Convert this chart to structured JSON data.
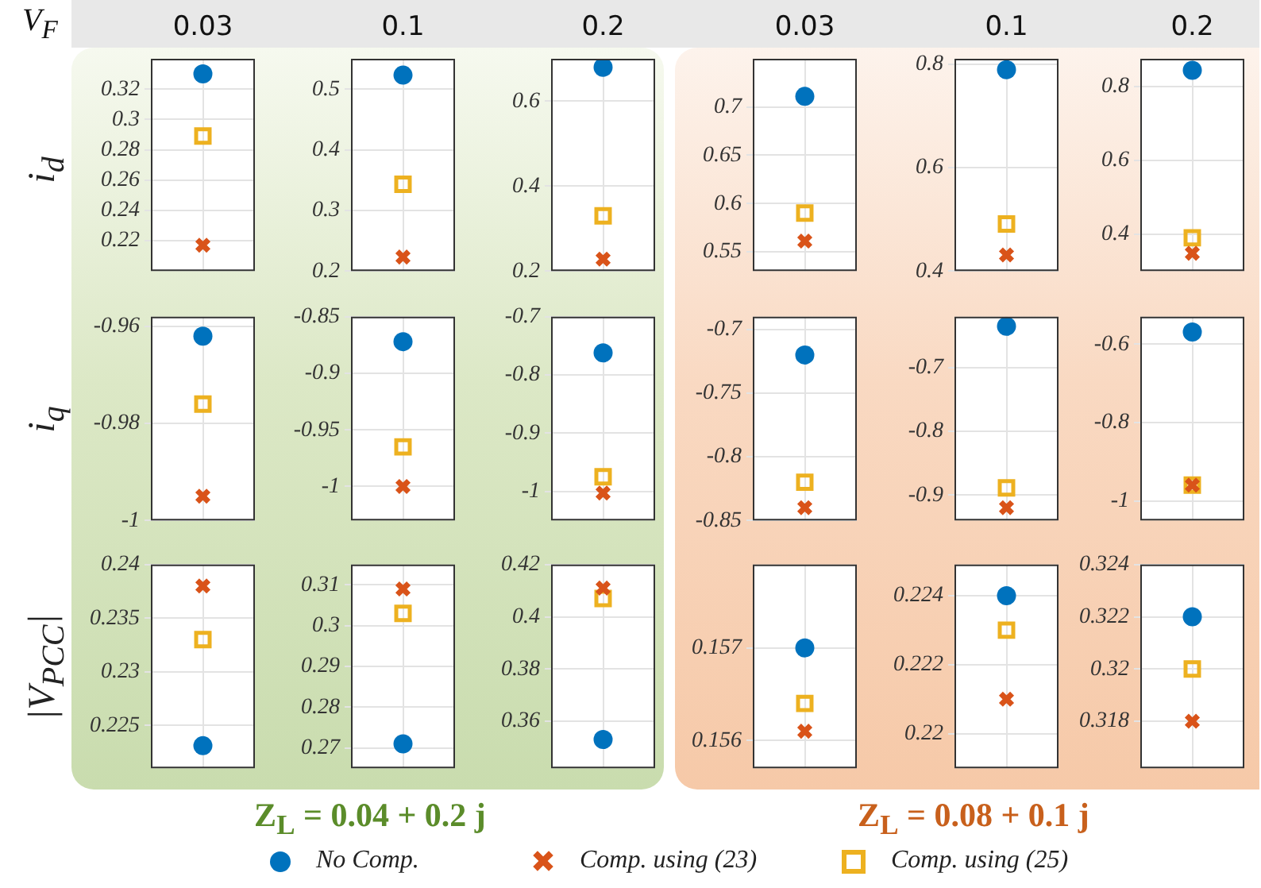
{
  "chart_data": [
    {
      "type": "scatter",
      "ylabel": "i$_{d}$",
      "annotations": [
        "V$_{F}$"
      ],
      "legend": "bottom",
      "categories": [
        "0.03"
      ],
      "ylim": [
        0.2,
        0.34
      ],
      "yticks": [
        0.22,
        0.24,
        0.26,
        0.28,
        0.3,
        0.32
      ],
      "grid": true,
      "series": [
        {
          "name": "No Comp.",
          "color": "#0072bd",
          "marker": "circle",
          "values": [
            0.33
          ]
        },
        {
          "name": "Comp. using (23)",
          "color": "#d95319",
          "marker": "cross",
          "values": [
            0.217
          ]
        },
        {
          "name": "Comp. using (25)",
          "color": "#edb120",
          "marker": "square",
          "values": [
            0.289
          ]
        }
      ]
    },
    {
      "type": "scatter",
      "categories": [
        "0.1"
      ],
      "ylim": [
        0.2,
        0.55
      ],
      "yticks": [
        0.2,
        0.3,
        0.4,
        0.5
      ],
      "grid": true,
      "series": [
        {
          "color": "#0072bd",
          "marker": "circle",
          "values": [
            0.523
          ]
        },
        {
          "color": "#d95319",
          "marker": "cross",
          "values": [
            0.223
          ]
        },
        {
          "color": "#edb120",
          "marker": "square",
          "values": [
            0.343
          ]
        }
      ]
    },
    {
      "type": "scatter",
      "categories": [
        "0.2"
      ],
      "ylim": [
        0.2,
        0.7
      ],
      "yticks": [
        0.2,
        0.4,
        0.6
      ],
      "grid": true,
      "series": [
        {
          "color": "#0072bd",
          "marker": "circle",
          "values": [
            0.68
          ]
        },
        {
          "color": "#d95319",
          "marker": "cross",
          "values": [
            0.228
          ]
        },
        {
          "color": "#edb120",
          "marker": "square",
          "values": [
            0.33
          ]
        }
      ]
    },
    {
      "type": "scatter",
      "categories": [
        "0.03"
      ],
      "ylim": [
        0.53,
        0.75
      ],
      "yticks": [
        0.55,
        0.6,
        0.65,
        0.7
      ],
      "grid": true,
      "series": [
        {
          "color": "#0072bd",
          "marker": "circle",
          "values": [
            0.711
          ]
        },
        {
          "color": "#d95319",
          "marker": "cross",
          "values": [
            0.561
          ]
        },
        {
          "color": "#edb120",
          "marker": "square",
          "values": [
            0.59
          ]
        }
      ]
    },
    {
      "type": "scatter",
      "categories": [
        "0.1"
      ],
      "ylim": [
        0.4,
        0.81
      ],
      "yticks": [
        0.4,
        0.6,
        0.8
      ],
      "grid": true,
      "series": [
        {
          "color": "#0072bd",
          "marker": "circle",
          "values": [
            0.789
          ]
        },
        {
          "color": "#d95319",
          "marker": "cross",
          "values": [
            0.431
          ]
        },
        {
          "color": "#edb120",
          "marker": "square",
          "values": [
            0.491
          ]
        }
      ]
    },
    {
      "type": "scatter",
      "categories": [
        "0.2"
      ],
      "ylim": [
        0.3,
        0.875
      ],
      "yticks": [
        0.4,
        0.6,
        0.8
      ],
      "grid": true,
      "series": [
        {
          "color": "#0072bd",
          "marker": "circle",
          "values": [
            0.844
          ]
        },
        {
          "color": "#d95319",
          "marker": "cross",
          "values": [
            0.348
          ]
        },
        {
          "color": "#edb120",
          "marker": "square",
          "values": [
            0.39
          ]
        }
      ]
    },
    {
      "type": "scatter",
      "ylabel": "i$_{q}$",
      "categories": [
        "0.03"
      ],
      "ylim": [
        -1,
        -0.958
      ],
      "yticks": [
        -1,
        -0.98,
        -0.96
      ],
      "grid": true,
      "tick_labels": "y",
      "series": [
        {
          "color": "#0072bd",
          "marker": "circle",
          "values": [
            -0.962
          ]
        },
        {
          "color": "#d95319",
          "marker": "cross",
          "values": [
            -0.995
          ]
        },
        {
          "color": "#edb120",
          "marker": "square",
          "values": [
            -0.976
          ]
        }
      ]
    },
    {
      "type": "scatter",
      "categories": [
        "0.1"
      ],
      "ylim": [
        -1.03,
        -0.85
      ],
      "yticks": [
        -1,
        -0.95,
        -0.9,
        -0.85
      ],
      "grid": true,
      "tick_labels": "y",
      "series": [
        {
          "color": "#0072bd",
          "marker": "circle",
          "values": [
            -0.872
          ]
        },
        {
          "color": "#d95319",
          "marker": "cross",
          "values": [
            -1.0
          ]
        },
        {
          "color": "#edb120",
          "marker": "square",
          "values": [
            -0.965
          ]
        }
      ]
    },
    {
      "type": "scatter",
      "categories": [
        "0.2"
      ],
      "ylim": [
        -1.05,
        -0.7
      ],
      "yticks": [
        -1,
        -0.9,
        -0.8,
        -0.7
      ],
      "grid": true,
      "tick_labels": "y",
      "series": [
        {
          "color": "#0072bd",
          "marker": "circle",
          "values": [
            -0.762
          ]
        },
        {
          "color": "#d95319",
          "marker": "cross",
          "values": [
            -1.003
          ]
        },
        {
          "color": "#edb120",
          "marker": "square",
          "values": [
            -0.975
          ]
        }
      ]
    },
    {
      "type": "scatter",
      "categories": [
        "0.03"
      ],
      "ylim": [
        -0.85,
        -0.69
      ],
      "yticks": [
        -0.85,
        -0.8,
        -0.75,
        -0.7
      ],
      "grid": true,
      "tick_labels": "y",
      "series": [
        {
          "color": "#0072bd",
          "marker": "circle",
          "values": [
            -0.72
          ]
        },
        {
          "color": "#d95319",
          "marker": "cross",
          "values": [
            -0.84
          ]
        },
        {
          "color": "#edb120",
          "marker": "square",
          "values": [
            -0.82
          ]
        }
      ]
    },
    {
      "type": "scatter",
      "categories": [
        "0.1"
      ],
      "ylim": [
        -0.94,
        -0.62
      ],
      "yticks": [
        -0.9,
        -0.8,
        -0.7
      ],
      "grid": true,
      "tick_labels": "y",
      "series": [
        {
          "color": "#0072bd",
          "marker": "circle",
          "values": [
            -0.635
          ]
        },
        {
          "color": "#d95319",
          "marker": "cross",
          "values": [
            -0.92
          ]
        },
        {
          "color": "#edb120",
          "marker": "square",
          "values": [
            -0.889
          ]
        }
      ]
    },
    {
      "type": "scatter",
      "categories": [
        "0.2"
      ],
      "ylim": [
        -1.05,
        -0.53
      ],
      "yticks": [
        -1,
        -0.8,
        -0.6
      ],
      "grid": true,
      "tick_labels": "y",
      "series": [
        {
          "color": "#0072bd",
          "marker": "circle",
          "values": [
            -0.569
          ]
        },
        {
          "color": "#d95319",
          "marker": "cross",
          "values": [
            -0.96
          ]
        },
        {
          "color": "#edb120",
          "marker": "square",
          "values": [
            -0.96
          ]
        }
      ]
    },
    {
      "type": "scatter",
      "ylabel": "|V$_{PCC}$|",
      "categories": [
        "0.03"
      ],
      "ylim": [
        0.221,
        0.24
      ],
      "yticks": [
        0.225,
        0.23,
        0.235,
        0.24
      ],
      "grid": true,
      "tick_labels": "y",
      "series": [
        {
          "color": "#0072bd",
          "marker": "circle",
          "values": [
            0.2231
          ]
        },
        {
          "color": "#d95319",
          "marker": "cross",
          "values": [
            0.238
          ]
        },
        {
          "color": "#edb120",
          "marker": "square",
          "values": [
            0.233
          ]
        }
      ]
    },
    {
      "type": "scatter",
      "xlabel": "Z$_{L}$ = 0.04 + 0.2 j",
      "categories": [
        "0.1"
      ],
      "ylim": [
        0.265,
        0.315
      ],
      "yticks": [
        0.27,
        0.28,
        0.29,
        0.3,
        0.31
      ],
      "grid": true,
      "tick_labels": "y",
      "series": [
        {
          "color": "#0072bd",
          "marker": "circle",
          "values": [
            0.271
          ]
        },
        {
          "color": "#d95319",
          "marker": "cross",
          "values": [
            0.309
          ]
        },
        {
          "color": "#edb120",
          "marker": "square",
          "values": [
            0.303
          ]
        }
      ]
    },
    {
      "type": "scatter",
      "categories": [
        "0.2"
      ],
      "ylim": [
        0.342,
        0.42
      ],
      "yticks": [
        0.36,
        0.38,
        0.4,
        0.42
      ],
      "grid": true,
      "tick_labels": "y",
      "series": [
        {
          "color": "#0072bd",
          "marker": "circle",
          "values": [
            0.353
          ]
        },
        {
          "color": "#d95319",
          "marker": "cross",
          "values": [
            0.411
          ]
        },
        {
          "color": "#edb120",
          "marker": "square",
          "values": [
            0.407
          ]
        }
      ]
    },
    {
      "type": "scatter",
      "categories": [
        "0.03"
      ],
      "ylim": [
        0.1557,
        0.1579
      ],
      "yticks": [
        0.156,
        0.157
      ],
      "grid": true,
      "tick_labels": "y",
      "series": [
        {
          "color": "#0072bd",
          "marker": "circle",
          "values": [
            0.157
          ]
        },
        {
          "color": "#d95319",
          "marker": "cross",
          "values": [
            0.1561
          ]
        },
        {
          "color": "#edb120",
          "marker": "square",
          "values": [
            0.1564
          ]
        }
      ]
    },
    {
      "type": "scatter",
      "xlabel": "Z$_{L}$ = 0.08 + 0.1 j",
      "categories": [
        "0.1"
      ],
      "ylim": [
        0.219,
        0.2249
      ],
      "yticks": [
        0.22,
        0.222,
        0.224
      ],
      "grid": true,
      "tick_labels": "y",
      "series": [
        {
          "color": "#0072bd",
          "marker": "circle",
          "values": [
            0.224
          ]
        },
        {
          "color": "#d95319",
          "marker": "cross",
          "values": [
            0.221
          ]
        },
        {
          "color": "#edb120",
          "marker": "square",
          "values": [
            0.223
          ]
        }
      ]
    },
    {
      "type": "scatter",
      "categories": [
        "0.2"
      ],
      "ylim": [
        0.3162,
        0.324
      ],
      "yticks": [
        0.318,
        0.32,
        0.322,
        0.324
      ],
      "grid": true,
      "tick_labels": "y",
      "series": [
        {
          "color": "#0072bd",
          "marker": "circle",
          "values": [
            0.322
          ]
        },
        {
          "color": "#d95319",
          "marker": "cross",
          "values": [
            0.318
          ]
        },
        {
          "color": "#edb120",
          "marker": "square",
          "values": [
            0.32
          ]
        }
      ]
    }
  ]
}
